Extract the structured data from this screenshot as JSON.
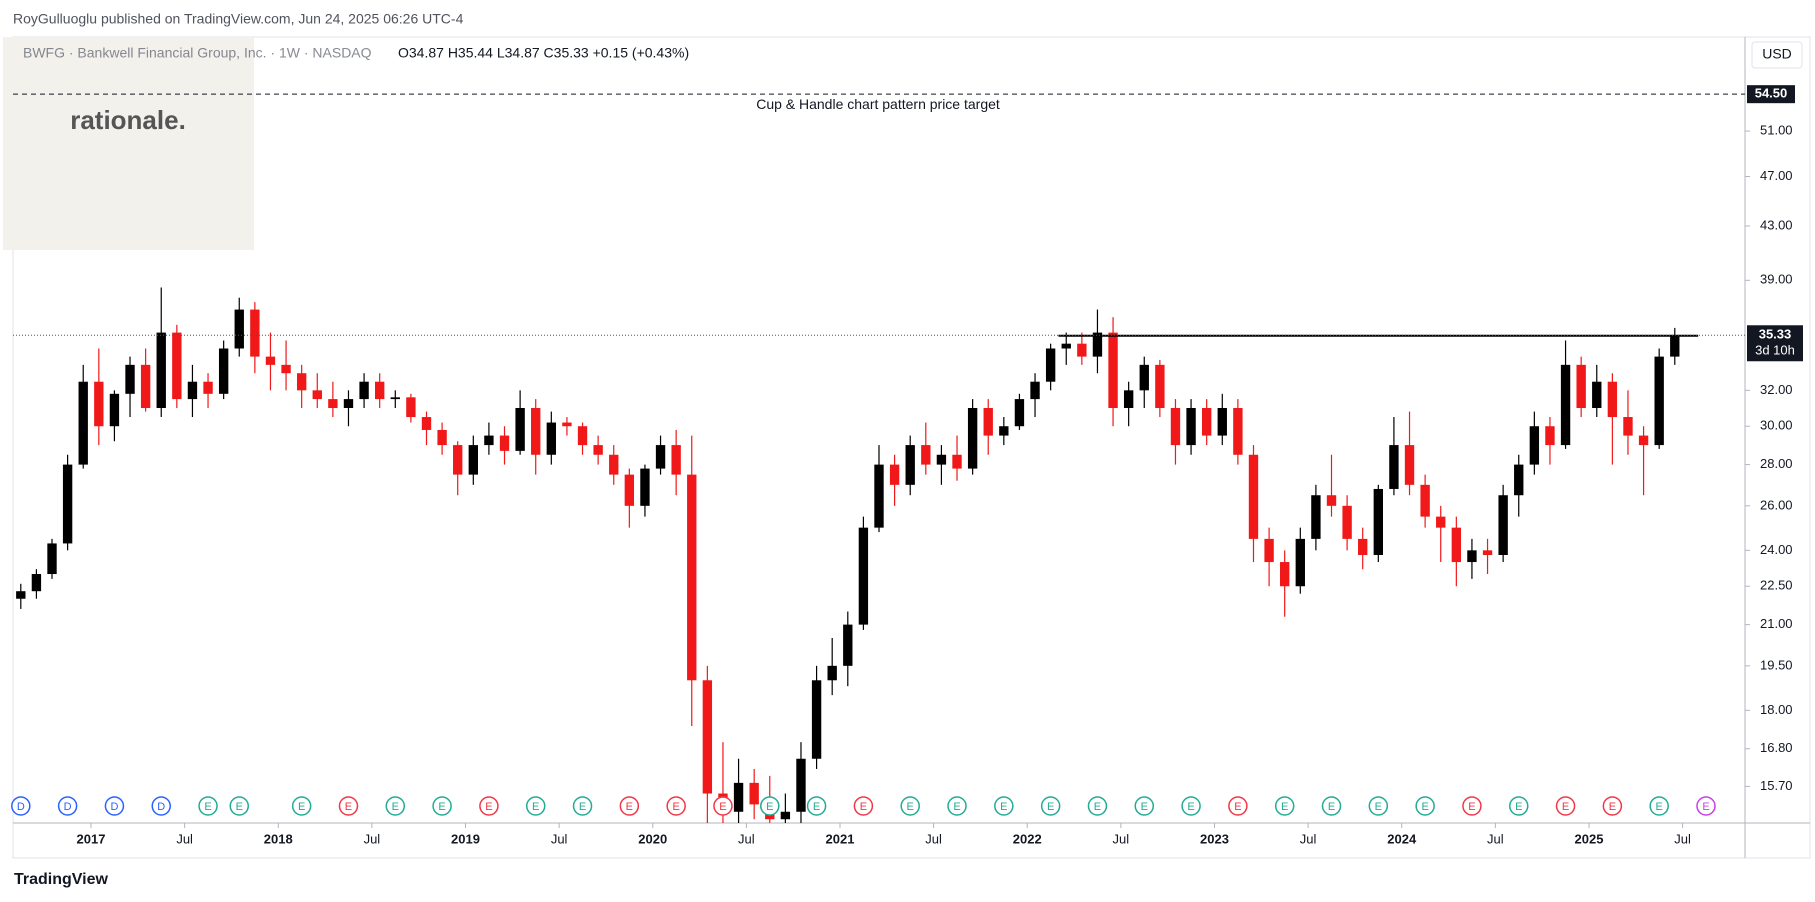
{
  "header": "RoyGulluoglu published on TradingView.com, Jun 24, 2025 06:26 UTC-4",
  "footer": "TradingView",
  "logo": "rationale.",
  "chart_data": {
    "type": "candlestick",
    "symbol": "BWFG · Bankwell Financial Group, Inc. · 1W · NASDAQ",
    "ohlc_text": "O34.87 H35.44 L34.87 C35.33 +0.15 (+0.43%)",
    "currency": "USD",
    "log_scale": true,
    "grid": false,
    "up_color": "#000000",
    "down_color": "#f01818",
    "xlim": [
      "2016-08",
      "2025-11"
    ],
    "ylim": [
      14.7,
      60.4
    ],
    "yticks": [
      {
        "value": 15.7,
        "label": "15.70"
      },
      {
        "value": 16.8,
        "label": "16.80"
      },
      {
        "value": 18,
        "label": "18.00"
      },
      {
        "value": 19.5,
        "label": "19.50"
      },
      {
        "value": 21,
        "label": "21.00"
      },
      {
        "value": 22.5,
        "label": "22.50"
      },
      {
        "value": 24,
        "label": "24.00"
      },
      {
        "value": 26,
        "label": "26.00"
      },
      {
        "value": 28,
        "label": "28.00"
      },
      {
        "value": 30,
        "label": "30.00"
      },
      {
        "value": 32,
        "label": "32.00"
      },
      {
        "value": 39,
        "label": "39.00"
      },
      {
        "value": 43,
        "label": "43.00"
      },
      {
        "value": 47,
        "label": "47.00"
      },
      {
        "value": 51,
        "label": "51.00"
      }
    ],
    "xticks": [
      {
        "value": "2017-01",
        "label": "2017"
      },
      {
        "value": "2017-07",
        "label": "Jul"
      },
      {
        "value": "2018-01",
        "label": "2018"
      },
      {
        "value": "2018-07",
        "label": "Jul"
      },
      {
        "value": "2019-01",
        "label": "2019"
      },
      {
        "value": "2019-07",
        "label": "Jul"
      },
      {
        "value": "2020-01",
        "label": "2020"
      },
      {
        "value": "2020-07",
        "label": "Jul"
      },
      {
        "value": "2021-01",
        "label": "2021"
      },
      {
        "value": "2021-07",
        "label": "Jul"
      },
      {
        "value": "2022-01",
        "label": "2022"
      },
      {
        "value": "2022-07",
        "label": "Jul"
      },
      {
        "value": "2023-01",
        "label": "2023"
      },
      {
        "value": "2023-07",
        "label": "Jul"
      },
      {
        "value": "2024-01",
        "label": "2024"
      },
      {
        "value": "2024-07",
        "label": "Jul"
      },
      {
        "value": "2025-01",
        "label": "2025"
      },
      {
        "value": "2025-07",
        "label": "Jul"
      }
    ],
    "target": {
      "value": 54.5,
      "label": "54.50",
      "annotation": "Cup & Handle chart pattern price target"
    },
    "last_price": {
      "value": 35.33,
      "label": "35.33",
      "countdown": "3d 10h"
    },
    "resistance": {
      "value": 35.3,
      "from": "2022-03",
      "to": "2025-08"
    },
    "x": [
      "2016-08",
      "2016-09",
      "2016-10",
      "2016-11",
      "2016-12",
      "2017-01",
      "2017-02",
      "2017-03",
      "2017-04",
      "2017-05",
      "2017-06",
      "2017-07",
      "2017-08",
      "2017-09",
      "2017-10",
      "2017-11",
      "2017-12",
      "2018-01",
      "2018-02",
      "2018-03",
      "2018-04",
      "2018-05",
      "2018-06",
      "2018-07",
      "2018-08",
      "2018-09",
      "2018-10",
      "2018-11",
      "2018-12",
      "2019-01",
      "2019-02",
      "2019-03",
      "2019-04",
      "2019-05",
      "2019-06",
      "2019-07",
      "2019-08",
      "2019-09",
      "2019-10",
      "2019-11",
      "2019-12",
      "2020-01",
      "2020-02",
      "2020-03",
      "2020-04",
      "2020-05",
      "2020-06",
      "2020-07",
      "2020-08",
      "2020-09",
      "2020-10",
      "2020-11",
      "2020-12",
      "2021-01",
      "2021-02",
      "2021-03",
      "2021-04",
      "2021-05",
      "2021-06",
      "2021-07",
      "2021-08",
      "2021-09",
      "2021-10",
      "2021-11",
      "2021-12",
      "2022-01",
      "2022-02",
      "2022-03",
      "2022-04",
      "2022-05",
      "2022-06",
      "2022-07",
      "2022-08",
      "2022-09",
      "2022-10",
      "2022-11",
      "2022-12",
      "2023-01",
      "2023-02",
      "2023-03",
      "2023-04",
      "2023-05",
      "2023-06",
      "2023-07",
      "2023-08",
      "2023-09",
      "2023-10",
      "2023-11",
      "2023-12",
      "2024-01",
      "2024-02",
      "2024-03",
      "2024-04",
      "2024-05",
      "2024-06",
      "2024-07",
      "2024-08",
      "2024-09",
      "2024-10",
      "2024-11",
      "2024-12",
      "2025-01",
      "2025-02",
      "2025-03",
      "2025-04",
      "2025-05",
      "2025-06"
    ],
    "open": [
      22.0,
      22.3,
      23.0,
      24.3,
      28.0,
      32.5,
      30.0,
      31.8,
      33.5,
      31.0,
      35.5,
      31.5,
      32.5,
      31.8,
      34.5,
      37.0,
      34.0,
      33.5,
      33.0,
      32.0,
      31.5,
      31.0,
      31.5,
      32.5,
      31.5,
      31.6,
      30.5,
      29.8,
      29.0,
      27.5,
      29.0,
      29.5,
      28.7,
      31.0,
      28.5,
      30.2,
      30.0,
      29.0,
      28.5,
      27.5,
      26.0,
      27.8,
      29.0,
      27.5,
      19.0,
      15.5,
      15.0,
      15.8,
      15.2,
      14.8,
      15.0,
      16.5,
      19.0,
      19.5,
      21.0,
      25.0,
      28.0,
      27.0,
      29.0,
      28.0,
      28.5,
      27.8,
      31.0,
      29.5,
      30.0,
      31.5,
      32.5,
      34.5,
      34.8,
      34.0,
      35.5,
      31.0,
      32.0,
      33.5,
      31.0,
      29.0,
      31.0,
      29.5,
      31.0,
      28.5,
      24.5,
      23.5,
      22.5,
      24.5,
      26.5,
      26.0,
      24.5,
      23.8,
      26.8,
      29.0,
      27.0,
      25.5,
      25.0,
      23.5,
      24.0,
      23.8,
      26.5,
      28.0,
      30.0,
      29.0,
      33.5,
      31.0,
      32.5,
      30.5,
      29.5,
      29.0,
      34.0
    ],
    "high": [
      22.6,
      23.2,
      24.5,
      28.5,
      33.5,
      34.5,
      32.0,
      34.0,
      34.5,
      38.5,
      36.0,
      33.5,
      33.0,
      35.0,
      37.8,
      37.5,
      35.5,
      35.0,
      33.5,
      33.0,
      32.5,
      32.0,
      33.0,
      33.0,
      32.0,
      31.8,
      30.8,
      30.2,
      29.2,
      29.5,
      30.2,
      30.0,
      32.0,
      31.5,
      30.8,
      30.5,
      30.2,
      29.5,
      29.0,
      27.8,
      28.0,
      29.5,
      29.8,
      29.5,
      19.5,
      17.0,
      16.5,
      16.2,
      16.0,
      15.5,
      17.0,
      19.5,
      20.5,
      21.5,
      25.5,
      29.0,
      28.5,
      29.5,
      30.2,
      29.0,
      29.5,
      31.5,
      31.5,
      30.5,
      31.8,
      33.0,
      34.8,
      35.5,
      35.5,
      37.0,
      36.5,
      32.5,
      34.0,
      33.8,
      31.5,
      31.5,
      31.5,
      31.8,
      31.5,
      29.0,
      25.0,
      24.0,
      25.0,
      27.0,
      28.5,
      26.5,
      25.0,
      27.0,
      30.5,
      30.8,
      27.5,
      26.0,
      25.5,
      24.5,
      24.5,
      27.0,
      28.5,
      30.8,
      30.5,
      35.0,
      34.0,
      33.5,
      33.0,
      32.0,
      30.0,
      34.5,
      35.8
    ],
    "low": [
      21.6,
      22.0,
      22.8,
      24.0,
      27.8,
      29.0,
      29.2,
      30.5,
      30.8,
      30.5,
      31.0,
      30.5,
      31.0,
      31.5,
      34.0,
      33.0,
      32.0,
      32.0,
      31.0,
      31.0,
      30.5,
      30.0,
      31.0,
      31.0,
      31.0,
      30.2,
      29.0,
      28.5,
      26.5,
      27.0,
      28.5,
      28.0,
      28.5,
      27.5,
      28.0,
      29.5,
      28.5,
      28.0,
      27.0,
      25.0,
      25.5,
      27.5,
      26.5,
      17.5,
      14.0,
      14.0,
      14.5,
      14.8,
      14.2,
      13.5,
      14.5,
      16.2,
      18.5,
      18.8,
      20.8,
      24.8,
      26.0,
      26.5,
      27.5,
      27.0,
      27.2,
      27.5,
      28.5,
      29.0,
      29.8,
      30.5,
      32.0,
      33.5,
      33.5,
      33.0,
      30.0,
      30.0,
      31.0,
      30.5,
      28.0,
      28.5,
      29.0,
      29.0,
      28.0,
      23.5,
      22.5,
      21.3,
      22.2,
      24.0,
      25.5,
      24.0,
      23.2,
      23.5,
      26.5,
      26.5,
      25.0,
      23.5,
      22.5,
      22.8,
      23.0,
      23.5,
      25.5,
      27.5,
      28.0,
      28.8,
      30.5,
      30.5,
      28.0,
      28.5,
      26.5,
      28.8,
      33.5
    ],
    "close": [
      22.3,
      23.0,
      24.3,
      28.0,
      32.5,
      30.0,
      31.8,
      33.5,
      31.0,
      35.5,
      31.5,
      32.5,
      31.8,
      34.5,
      37.0,
      34.0,
      33.5,
      33.0,
      32.0,
      31.5,
      31.0,
      31.5,
      32.5,
      31.5,
      31.6,
      30.5,
      29.8,
      29.0,
      27.5,
      29.0,
      29.5,
      28.7,
      31.0,
      28.5,
      30.2,
      30.0,
      29.0,
      28.5,
      27.5,
      26.0,
      27.8,
      29.0,
      27.5,
      19.0,
      15.5,
      15.0,
      15.8,
      15.2,
      14.8,
      15.0,
      16.5,
      19.0,
      19.5,
      21.0,
      25.0,
      28.0,
      27.0,
      29.0,
      28.0,
      28.5,
      27.8,
      31.0,
      29.5,
      30.0,
      31.5,
      32.5,
      34.5,
      34.8,
      34.0,
      35.5,
      31.0,
      32.0,
      33.5,
      31.0,
      29.0,
      31.0,
      29.5,
      31.0,
      28.5,
      24.5,
      23.5,
      22.5,
      24.5,
      26.5,
      26.0,
      24.5,
      23.8,
      26.8,
      29.0,
      27.0,
      25.5,
      25.0,
      23.5,
      24.0,
      23.8,
      26.5,
      28.0,
      30.0,
      29.0,
      33.5,
      31.0,
      32.5,
      30.5,
      29.5,
      29.0,
      34.0,
      35.33
    ],
    "events": [
      {
        "date": "2016-08",
        "label": "D",
        "color": "#2962ff"
      },
      {
        "date": "2016-11",
        "label": "D",
        "color": "#2962ff"
      },
      {
        "date": "2017-02",
        "label": "D",
        "color": "#2962ff"
      },
      {
        "date": "2017-05",
        "label": "D",
        "color": "#2962ff"
      },
      {
        "date": "2017-08",
        "label": "E",
        "color": "#22ab94"
      },
      {
        "date": "2017-10",
        "label": "E",
        "color": "#22ab94"
      },
      {
        "date": "2018-02",
        "label": "E",
        "color": "#22ab94"
      },
      {
        "date": "2018-05",
        "label": "E",
        "color": "#f23645"
      },
      {
        "date": "2018-08",
        "label": "E",
        "color": "#22ab94"
      },
      {
        "date": "2018-11",
        "label": "E",
        "color": "#22ab94"
      },
      {
        "date": "2019-02",
        "label": "E",
        "color": "#f23645"
      },
      {
        "date": "2019-05",
        "label": "E",
        "color": "#22ab94"
      },
      {
        "date": "2019-08",
        "label": "E",
        "color": "#22ab94"
      },
      {
        "date": "2019-11",
        "label": "E",
        "color": "#f23645"
      },
      {
        "date": "2020-02",
        "label": "E",
        "color": "#f23645"
      },
      {
        "date": "2020-05",
        "label": "E",
        "color": "#f23645"
      },
      {
        "date": "2020-08",
        "label": "E",
        "color": "#22ab94"
      },
      {
        "date": "2020-11",
        "label": "E",
        "color": "#22ab94"
      },
      {
        "date": "2021-02",
        "label": "E",
        "color": "#f23645"
      },
      {
        "date": "2021-05",
        "label": "E",
        "color": "#22ab94"
      },
      {
        "date": "2021-08",
        "label": "E",
        "color": "#22ab94"
      },
      {
        "date": "2021-11",
        "label": "E",
        "color": "#22ab94"
      },
      {
        "date": "2022-02",
        "label": "E",
        "color": "#22ab94"
      },
      {
        "date": "2022-05",
        "label": "E",
        "color": "#22ab94"
      },
      {
        "date": "2022-08",
        "label": "E",
        "color": "#22ab94"
      },
      {
        "date": "2022-11",
        "label": "E",
        "color": "#22ab94"
      },
      {
        "date": "2023-02",
        "label": "E",
        "color": "#f23645"
      },
      {
        "date": "2023-05",
        "label": "E",
        "color": "#22ab94"
      },
      {
        "date": "2023-08",
        "label": "E",
        "color": "#22ab94"
      },
      {
        "date": "2023-11",
        "label": "E",
        "color": "#22ab94"
      },
      {
        "date": "2024-02",
        "label": "E",
        "color": "#22ab94"
      },
      {
        "date": "2024-05",
        "label": "E",
        "color": "#f23645"
      },
      {
        "date": "2024-08",
        "label": "E",
        "color": "#22ab94"
      },
      {
        "date": "2024-11",
        "label": "E",
        "color": "#f23645"
      },
      {
        "date": "2025-02",
        "label": "E",
        "color": "#f23645"
      },
      {
        "date": "2025-05",
        "label": "E",
        "color": "#22ab94"
      },
      {
        "date": "2025-08",
        "label": "E",
        "color": "#c740e8"
      }
    ]
  }
}
